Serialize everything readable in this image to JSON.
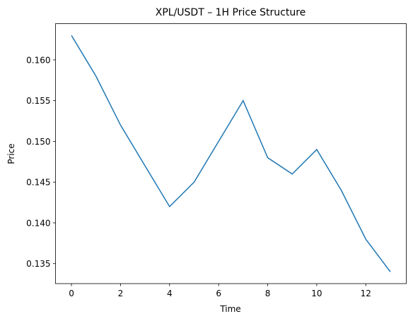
{
  "chart_data": {
    "type": "line",
    "title": "XPL/USDT – 1H Price Structure",
    "xlabel": "Time",
    "ylabel": "Price",
    "x": [
      0,
      1,
      2,
      3,
      4,
      5,
      6,
      7,
      8,
      9,
      10,
      11,
      12,
      13
    ],
    "series": [
      {
        "name": "Price",
        "color": "#1f77b4",
        "values": [
          0.163,
          0.158,
          0.152,
          0.147,
          0.142,
          0.145,
          0.15,
          0.155,
          0.148,
          0.146,
          0.149,
          0.144,
          0.138,
          0.134
        ]
      }
    ],
    "xlim": [
      -0.65,
      13.65
    ],
    "xticks": [
      0,
      2,
      4,
      6,
      8,
      10,
      12
    ],
    "ylim": [
      0.13255,
      0.16445
    ],
    "yticks": [
      0.135,
      {
        "value": 0.14,
        "label": "0.140"
      },
      0.145,
      {
        "value": 0.15,
        "label": "0.150"
      },
      0.155,
      {
        "value": 0.16,
        "label": "0.160"
      }
    ],
    "grid": false
  }
}
